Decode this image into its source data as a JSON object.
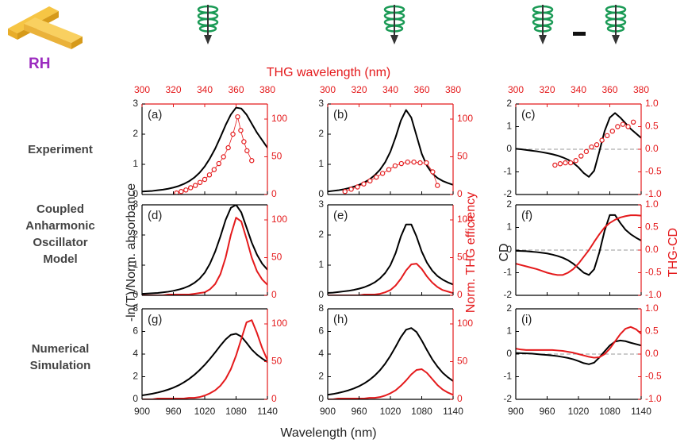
{
  "labels": {
    "icon_label": "RH",
    "rows": [
      "Experiment",
      "Coupled Anharmonic Oscillator Model",
      "Numerical Simulation"
    ],
    "top_axis_title": "THG wavelength (nm)",
    "x_axis_title": "Wavelength (nm)",
    "y_left_title": "-ln(T)/Norm. absorbance",
    "y_right_title": "Norm. THG efficiency",
    "cd_left_title": "CD",
    "cd_right_title": "THG-CD"
  },
  "chart_data": [
    {
      "type": "line",
      "panel": "(a)",
      "x": [
        900,
        910,
        920,
        930,
        940,
        950,
        960,
        970,
        980,
        990,
        1000,
        1010,
        1020,
        1030,
        1040,
        1050,
        1060,
        1070,
        1080,
        1090,
        1100,
        1110,
        1120,
        1130,
        1140
      ],
      "xlim": [
        900,
        1140
      ],
      "xticks": [
        900,
        960,
        1020,
        1080,
        1140
      ],
      "x2lim": [
        300,
        380
      ],
      "x2ticks": [
        300,
        320,
        340,
        360,
        380
      ],
      "ylim": [
        0,
        3
      ],
      "yticks": [
        0,
        1,
        2,
        3
      ],
      "y2lim": [
        0,
        120
      ],
      "y2ticks": [
        0,
        50,
        100
      ],
      "series": [
        {
          "color": "#000000",
          "values": [
            0.1,
            0.11,
            0.12,
            0.14,
            0.16,
            0.19,
            0.23,
            0.28,
            0.35,
            0.44,
            0.56,
            0.72,
            0.93,
            1.2,
            1.52,
            1.9,
            2.3,
            2.65,
            2.88,
            2.85,
            2.65,
            2.35,
            2.05,
            1.8,
            1.55
          ]
        },
        {
          "color": "#e41a1c",
          "axis": "y2",
          "marker": "circle",
          "x": [
            966,
            975,
            984,
            993,
            1002,
            1011,
            1020,
            1029,
            1038,
            1047,
            1056,
            1065,
            1074,
            1083,
            1089,
            1095,
            1101,
            1110
          ],
          "values": [
            2,
            4,
            6,
            9,
            12,
            16,
            20,
            26,
            33,
            41,
            50,
            62,
            80,
            103,
            85,
            70,
            58,
            45
          ]
        }
      ]
    },
    {
      "type": "line",
      "panel": "(b)",
      "x": [
        900,
        910,
        920,
        930,
        940,
        950,
        960,
        970,
        980,
        990,
        1000,
        1010,
        1020,
        1030,
        1040,
        1050,
        1060,
        1070,
        1080,
        1090,
        1100,
        1110,
        1120,
        1130,
        1140
      ],
      "xlim": [
        900,
        1140
      ],
      "xticks": [
        900,
        960,
        1020,
        1080,
        1140
      ],
      "x2lim": [
        300,
        380
      ],
      "x2ticks": [
        300,
        320,
        340,
        360,
        380
      ],
      "ylim": [
        0,
        3
      ],
      "yticks": [
        0,
        1,
        2,
        3
      ],
      "y2lim": [
        0,
        120
      ],
      "y2ticks": [
        0,
        50,
        100
      ],
      "series": [
        {
          "color": "#000000",
          "values": [
            0.1,
            0.12,
            0.14,
            0.17,
            0.21,
            0.26,
            0.32,
            0.4,
            0.5,
            0.64,
            0.82,
            1.07,
            1.42,
            1.9,
            2.45,
            2.8,
            2.55,
            1.95,
            1.35,
            0.95,
            0.7,
            0.55,
            0.45,
            0.38,
            0.32
          ]
        },
        {
          "color": "#e41a1c",
          "axis": "y2",
          "marker": "circle",
          "x": [
            933,
            945,
            957,
            969,
            981,
            993,
            1005,
            1017,
            1029,
            1041,
            1053,
            1065,
            1077,
            1089,
            1101,
            1110
          ],
          "values": [
            4,
            7,
            10,
            14,
            18,
            23,
            28,
            33,
            38,
            41,
            43,
            43,
            42,
            42,
            30,
            12
          ]
        }
      ]
    },
    {
      "type": "line",
      "panel": "(c)",
      "x": [
        900,
        910,
        920,
        930,
        940,
        950,
        960,
        970,
        980,
        990,
        1000,
        1010,
        1020,
        1030,
        1040,
        1050,
        1060,
        1070,
        1080,
        1090,
        1100,
        1110,
        1120,
        1130,
        1140
      ],
      "xlim": [
        900,
        1140
      ],
      "xticks": [
        900,
        960,
        1020,
        1080,
        1140
      ],
      "x2lim": [
        300,
        380
      ],
      "x2ticks": [
        300,
        320,
        340,
        360,
        380
      ],
      "ylim": [
        -2,
        2
      ],
      "yticks": [
        -2,
        -1,
        0,
        1,
        2
      ],
      "y2lim": [
        -1,
        1
      ],
      "y2ticks": [
        {
          "value": -1,
          "label": "-1.0"
        },
        -0.5,
        {
          "value": 0,
          "label": "0.0"
        },
        0.5,
        {
          "value": 1,
          "label": "1.0"
        }
      ],
      "zero_line": true,
      "series": [
        {
          "color": "#000000",
          "values": [
            0.02,
            0.0,
            -0.03,
            -0.06,
            -0.09,
            -0.13,
            -0.17,
            -0.22,
            -0.28,
            -0.36,
            -0.46,
            -0.6,
            -0.8,
            -1.05,
            -1.22,
            -0.95,
            -0.1,
            0.8,
            1.4,
            1.6,
            1.4,
            1.15,
            0.9,
            0.7,
            0.5
          ]
        },
        {
          "color": "#e41a1c",
          "axis": "y2",
          "marker": "circle",
          "connect": false,
          "x": [
            975,
            985,
            995,
            1005,
            1015,
            1025,
            1035,
            1045,
            1055,
            1065,
            1075,
            1085,
            1095,
            1105,
            1115,
            1125
          ],
          "values": [
            -0.35,
            -0.32,
            -0.3,
            -0.3,
            -0.25,
            -0.15,
            -0.05,
            0.05,
            0.1,
            0.2,
            0.3,
            0.4,
            0.5,
            0.55,
            0.5,
            0.6
          ]
        }
      ]
    },
    {
      "type": "line",
      "panel": "(d)",
      "x": [
        900,
        910,
        920,
        930,
        940,
        950,
        960,
        970,
        980,
        990,
        1000,
        1010,
        1020,
        1030,
        1040,
        1050,
        1060,
        1070,
        1080,
        1090,
        1100,
        1110,
        1120,
        1130,
        1140
      ],
      "xlim": [
        900,
        1140
      ],
      "xticks": [
        900,
        960,
        1020,
        1080,
        1140
      ],
      "ylim": [
        0,
        3
      ],
      "yticks": [
        0,
        1,
        2,
        3
      ],
      "y2lim": [
        0,
        120
      ],
      "y2ticks": [
        0,
        50,
        100
      ],
      "series": [
        {
          "color": "#000000",
          "values": [
            0.05,
            0.06,
            0.07,
            0.08,
            0.1,
            0.12,
            0.15,
            0.19,
            0.24,
            0.31,
            0.41,
            0.55,
            0.75,
            1.05,
            1.45,
            1.95,
            2.5,
            2.9,
            3.0,
            2.75,
            2.25,
            1.75,
            1.35,
            1.05,
            0.85
          ]
        },
        {
          "color": "#e41a1c",
          "axis": "y2",
          "values": [
            0,
            0,
            0,
            0,
            0,
            1,
            1,
            1,
            1,
            1,
            2,
            3,
            4,
            8,
            15,
            28,
            50,
            80,
            103,
            98,
            75,
            50,
            32,
            21,
            14
          ]
        }
      ]
    },
    {
      "type": "line",
      "panel": "(e)",
      "x": [
        900,
        910,
        920,
        930,
        940,
        950,
        960,
        970,
        980,
        990,
        1000,
        1010,
        1020,
        1030,
        1040,
        1050,
        1060,
        1070,
        1080,
        1090,
        1100,
        1110,
        1120,
        1130,
        1140
      ],
      "xlim": [
        900,
        1140
      ],
      "xticks": [
        900,
        960,
        1020,
        1080,
        1140
      ],
      "ylim": [
        0,
        3
      ],
      "yticks": [
        0,
        1,
        2,
        3
      ],
      "y2lim": [
        0,
        120
      ],
      "y2ticks": [
        0,
        50,
        100
      ],
      "series": [
        {
          "color": "#000000",
          "values": [
            0.08,
            0.09,
            0.11,
            0.13,
            0.15,
            0.18,
            0.22,
            0.27,
            0.34,
            0.43,
            0.56,
            0.74,
            1.0,
            1.4,
            1.95,
            2.35,
            2.35,
            1.95,
            1.45,
            1.08,
            0.82,
            0.64,
            0.52,
            0.43,
            0.36
          ]
        },
        {
          "color": "#e41a1c",
          "axis": "y2",
          "values": [
            0,
            0,
            0,
            0,
            0,
            0,
            0,
            1,
            1,
            1,
            2,
            4,
            7,
            13,
            22,
            33,
            41,
            42,
            35,
            25,
            17,
            11,
            7,
            5,
            3
          ]
        }
      ]
    },
    {
      "type": "line",
      "panel": "(f)",
      "x": [
        900,
        910,
        920,
        930,
        940,
        950,
        960,
        970,
        980,
        990,
        1000,
        1010,
        1020,
        1030,
        1040,
        1050,
        1060,
        1070,
        1080,
        1090,
        1100,
        1110,
        1120,
        1130,
        1140
      ],
      "xlim": [
        900,
        1140
      ],
      "xticks": [
        900,
        960,
        1020,
        1080,
        1140
      ],
      "ylim": [
        -2,
        2
      ],
      "yticks": [
        -2,
        -1,
        0,
        1,
        2
      ],
      "y2lim": [
        -1,
        1
      ],
      "y2ticks": [
        {
          "value": -1,
          "label": "-1.0"
        },
        -0.5,
        {
          "value": 0,
          "label": "0.0"
        },
        0.5,
        {
          "value": 1,
          "label": "1.0"
        }
      ],
      "zero_line": true,
      "series": [
        {
          "color": "#000000",
          "values": [
            -0.03,
            -0.04,
            -0.05,
            -0.07,
            -0.09,
            -0.12,
            -0.15,
            -0.2,
            -0.26,
            -0.34,
            -0.45,
            -0.6,
            -0.8,
            -1.0,
            -1.1,
            -0.85,
            -0.1,
            0.85,
            1.55,
            1.55,
            1.2,
            0.9,
            0.7,
            0.55,
            0.42
          ]
        },
        {
          "color": "#e41a1c",
          "axis": "y2",
          "values": [
            -0.3,
            -0.33,
            -0.36,
            -0.39,
            -0.42,
            -0.46,
            -0.5,
            -0.53,
            -0.55,
            -0.55,
            -0.5,
            -0.42,
            -0.3,
            -0.15,
            0.0,
            0.18,
            0.35,
            0.5,
            0.6,
            0.67,
            0.72,
            0.75,
            0.77,
            0.77,
            0.76
          ]
        }
      ]
    },
    {
      "type": "line",
      "panel": "(g)",
      "x": [
        900,
        910,
        920,
        930,
        940,
        950,
        960,
        970,
        980,
        990,
        1000,
        1010,
        1020,
        1030,
        1040,
        1050,
        1060,
        1070,
        1080,
        1090,
        1100,
        1110,
        1120,
        1130,
        1140
      ],
      "xlim": [
        900,
        1140
      ],
      "xticks": [
        900,
        960,
        1020,
        1080,
        1140
      ],
      "x_labels": true,
      "ylim": [
        0,
        8
      ],
      "yticks": [
        0,
        2,
        4,
        6,
        8
      ],
      "y2lim": [
        0,
        120
      ],
      "y2ticks": [
        0,
        50,
        100
      ],
      "series": [
        {
          "color": "#000000",
          "values": [
            0.35,
            0.42,
            0.5,
            0.6,
            0.72,
            0.86,
            1.03,
            1.24,
            1.5,
            1.8,
            2.16,
            2.58,
            3.05,
            3.58,
            4.15,
            4.75,
            5.3,
            5.7,
            5.8,
            5.55,
            5.0,
            4.4,
            3.95,
            3.6,
            3.3
          ]
        },
        {
          "color": "#e41a1c",
          "axis": "y2",
          "values": [
            0,
            0,
            0,
            1,
            1,
            1,
            1,
            1,
            1,
            2,
            2,
            3,
            5,
            8,
            12,
            18,
            27,
            40,
            58,
            80,
            102,
            105,
            88,
            68,
            52
          ]
        }
      ]
    },
    {
      "type": "line",
      "panel": "(h)",
      "x": [
        900,
        910,
        920,
        930,
        940,
        950,
        960,
        970,
        980,
        990,
        1000,
        1010,
        1020,
        1030,
        1040,
        1050,
        1060,
        1070,
        1080,
        1090,
        1100,
        1110,
        1120,
        1130,
        1140
      ],
      "xlim": [
        900,
        1140
      ],
      "xticks": [
        900,
        960,
        1020,
        1080,
        1140
      ],
      "x_labels": true,
      "ylim": [
        0,
        8
      ],
      "yticks": [
        0,
        2,
        4,
        6,
        8
      ],
      "y2lim": [
        0,
        120
      ],
      "y2ticks": [
        0,
        50,
        100
      ],
      "series": [
        {
          "color": "#000000",
          "values": [
            0.4,
            0.47,
            0.56,
            0.67,
            0.8,
            0.96,
            1.16,
            1.41,
            1.72,
            2.1,
            2.57,
            3.15,
            3.85,
            4.65,
            5.5,
            6.15,
            6.3,
            5.95,
            5.2,
            4.35,
            3.55,
            2.9,
            2.35,
            1.95,
            1.62
          ]
        },
        {
          "color": "#e41a1c",
          "axis": "y2",
          "values": [
            0,
            0,
            1,
            1,
            1,
            1,
            1,
            1,
            2,
            2,
            3,
            5,
            8,
            12,
            18,
            25,
            33,
            39,
            40,
            35,
            27,
            19,
            13,
            9,
            6
          ]
        }
      ]
    },
    {
      "type": "line",
      "panel": "(i)",
      "x": [
        900,
        910,
        920,
        930,
        940,
        950,
        960,
        970,
        980,
        990,
        1000,
        1010,
        1020,
        1030,
        1040,
        1050,
        1060,
        1070,
        1080,
        1090,
        1100,
        1110,
        1120,
        1130,
        1140
      ],
      "xlim": [
        900,
        1140
      ],
      "xticks": [
        900,
        960,
        1020,
        1080,
        1140
      ],
      "x_labels": true,
      "ylim": [
        -2,
        2
      ],
      "yticks": [
        -2,
        -1,
        0,
        1,
        2
      ],
      "y2lim": [
        -1,
        1
      ],
      "y2ticks": [
        {
          "value": -1,
          "label": "-1.0"
        },
        -0.5,
        {
          "value": 0,
          "label": "0.0"
        },
        0.5,
        {
          "value": 1,
          "label": "1.0"
        }
      ],
      "zero_line": true,
      "series": [
        {
          "color": "#000000",
          "values": [
            0.05,
            0.04,
            0.03,
            0.02,
            0.0,
            -0.02,
            -0.04,
            -0.06,
            -0.09,
            -0.13,
            -0.17,
            -0.23,
            -0.31,
            -0.4,
            -0.45,
            -0.38,
            -0.15,
            0.12,
            0.38,
            0.55,
            0.6,
            0.57,
            0.5,
            0.44,
            0.38
          ]
        },
        {
          "color": "#e41a1c",
          "axis": "y2",
          "values": [
            0.12,
            0.1,
            0.09,
            0.09,
            0.09,
            0.09,
            0.09,
            0.09,
            0.08,
            0.07,
            0.05,
            0.03,
            0.0,
            -0.03,
            -0.06,
            -0.08,
            -0.07,
            0.0,
            0.12,
            0.28,
            0.44,
            0.56,
            0.6,
            0.55,
            0.45
          ]
        }
      ]
    }
  ]
}
